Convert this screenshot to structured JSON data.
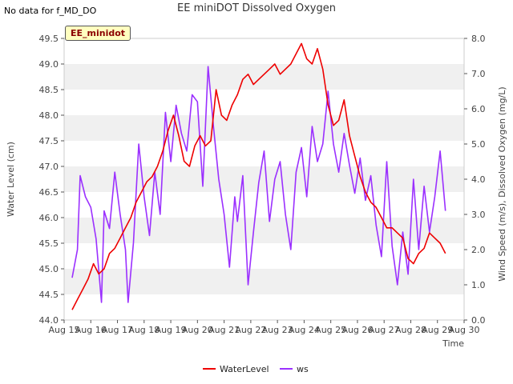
{
  "header": {
    "nodata_text": "No data for f_MD_DO",
    "title": "EE miniDOT Dissolved Oxygen",
    "badge": "EE_minidot"
  },
  "chart_data": {
    "type": "line",
    "title": "EE miniDOT Dissolved Oxygen",
    "xlabel": "Time",
    "ylabel_left": "Water Level (cm)",
    "ylabel_right": "Wind Speed (m/s), Dissolved Oxygen (mg/L)",
    "x_unit": "day of August",
    "xlim": [
      15,
      30
    ],
    "x_ticks": [
      15,
      16,
      17,
      18,
      19,
      20,
      21,
      22,
      23,
      24,
      25,
      26,
      27,
      28,
      29,
      30
    ],
    "x_tick_labels": [
      "Aug 15",
      "Aug 16",
      "Aug 17",
      "Aug 18",
      "Aug 19",
      "Aug 20",
      "Aug 21",
      "Aug 22",
      "Aug 23",
      "Aug 24",
      "Aug 25",
      "Aug 26",
      "Aug 27",
      "Aug 28",
      "Aug 29",
      "Aug 30"
    ],
    "ylim_left": [
      44.0,
      49.5
    ],
    "y_ticks_left": [
      "44.0",
      "44.5",
      "45.0",
      "45.5",
      "46.0",
      "46.5",
      "47.0",
      "47.5",
      "48.0",
      "48.5",
      "49.0",
      "49.5"
    ],
    "ylim_right": [
      0.0,
      8.0
    ],
    "y_ticks_right": [
      "0.0",
      "1.0",
      "2.0",
      "3.0",
      "4.0",
      "5.0",
      "6.0",
      "7.0",
      "8.0"
    ],
    "grid": "horizontal bands",
    "legend_position": "bottom-center",
    "series": [
      {
        "name": "WaterLevel",
        "color": "#ee0000",
        "axis": "left",
        "x": [
          15.3,
          15.5,
          15.7,
          15.9,
          16.1,
          16.3,
          16.5,
          16.7,
          16.9,
          17.1,
          17.3,
          17.5,
          17.7,
          17.9,
          18.1,
          18.3,
          18.5,
          18.7,
          18.9,
          19.1,
          19.3,
          19.5,
          19.7,
          19.9,
          20.1,
          20.3,
          20.5,
          20.7,
          20.9,
          21.1,
          21.3,
          21.5,
          21.7,
          21.9,
          22.1,
          22.3,
          22.5,
          22.7,
          22.9,
          23.1,
          23.3,
          23.5,
          23.7,
          23.9,
          24.1,
          24.3,
          24.5,
          24.7,
          24.9,
          25.1,
          25.3,
          25.5,
          25.7,
          25.9,
          26.1,
          26.3,
          26.5,
          26.7,
          26.9,
          27.1,
          27.3,
          27.5,
          27.7,
          27.9,
          28.1,
          28.3,
          28.5,
          28.7,
          28.9,
          29.1,
          29.3
        ],
        "values": [
          44.2,
          44.4,
          44.6,
          44.8,
          45.1,
          44.9,
          45.0,
          45.3,
          45.4,
          45.6,
          45.8,
          46.0,
          46.3,
          46.5,
          46.7,
          46.8,
          47.0,
          47.3,
          47.7,
          48.0,
          47.6,
          47.1,
          47.0,
          47.4,
          47.6,
          47.4,
          47.5,
          48.5,
          48.0,
          47.9,
          48.2,
          48.4,
          48.7,
          48.8,
          48.6,
          48.7,
          48.8,
          48.9,
          49.0,
          48.8,
          48.9,
          49.0,
          49.2,
          49.4,
          49.1,
          49.0,
          49.3,
          48.9,
          48.2,
          47.8,
          47.9,
          48.3,
          47.6,
          47.2,
          46.8,
          46.5,
          46.3,
          46.2,
          46.0,
          45.8,
          45.8,
          45.7,
          45.6,
          45.2,
          45.1,
          45.3,
          45.4,
          45.7,
          45.6,
          45.5,
          45.3
        ]
      },
      {
        "name": "ws",
        "color": "#9b30ff",
        "axis": "right",
        "x": [
          15.3,
          15.5,
          15.6,
          15.8,
          16.0,
          16.2,
          16.4,
          16.5,
          16.7,
          16.9,
          17.1,
          17.3,
          17.4,
          17.6,
          17.8,
          18.0,
          18.2,
          18.4,
          18.6,
          18.8,
          19.0,
          19.2,
          19.4,
          19.6,
          19.8,
          20.0,
          20.2,
          20.4,
          20.6,
          20.8,
          21.0,
          21.2,
          21.4,
          21.5,
          21.7,
          21.9,
          22.1,
          22.3,
          22.5,
          22.7,
          22.9,
          23.1,
          23.3,
          23.5,
          23.7,
          23.9,
          24.1,
          24.3,
          24.5,
          24.7,
          24.9,
          25.1,
          25.3,
          25.5,
          25.7,
          25.9,
          26.1,
          26.3,
          26.5,
          26.7,
          26.9,
          27.1,
          27.3,
          27.5,
          27.7,
          27.9,
          28.1,
          28.3,
          28.5,
          28.7,
          28.9,
          29.1,
          29.3
        ],
        "values": [
          1.2,
          2.0,
          4.1,
          3.5,
          3.2,
          2.3,
          0.5,
          3.1,
          2.6,
          4.2,
          3.0,
          2.0,
          0.5,
          2.2,
          5.0,
          3.5,
          2.4,
          4.2,
          3.0,
          5.9,
          4.5,
          6.1,
          5.3,
          4.8,
          6.4,
          6.2,
          3.8,
          7.2,
          5.5,
          4.0,
          3.0,
          1.5,
          3.5,
          2.8,
          4.1,
          1.0,
          2.5,
          3.9,
          4.8,
          2.8,
          4.0,
          4.5,
          3.0,
          2.0,
          4.2,
          4.9,
          3.5,
          5.5,
          4.5,
          5.0,
          6.5,
          5.0,
          4.2,
          5.3,
          4.4,
          3.6,
          4.6,
          3.4,
          4.1,
          2.7,
          1.8,
          4.5,
          2.1,
          1.0,
          2.5,
          1.3,
          4.0,
          2.0,
          3.8,
          2.5,
          3.5,
          4.8,
          3.1
        ]
      }
    ]
  }
}
